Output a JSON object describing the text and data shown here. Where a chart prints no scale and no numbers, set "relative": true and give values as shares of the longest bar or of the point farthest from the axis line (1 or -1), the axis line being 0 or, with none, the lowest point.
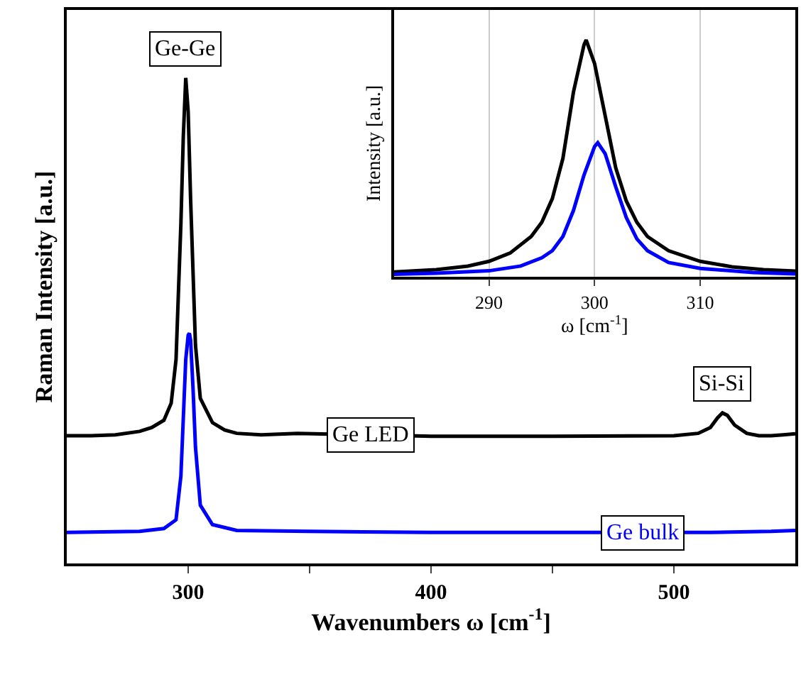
{
  "chart_data": [
    {
      "type": "line",
      "relative": true,
      "xlim": [
        250,
        550
      ],
      "xticks": [
        300,
        {
          "value": 350,
          "label": null
        },
        400,
        {
          "value": 450,
          "label": null
        },
        500
      ],
      "xlabel": "Wavenumbers ω [cm$^{-1}$]",
      "ylabel": "Raman Intensity [a.u.]",
      "grid": false,
      "line_style": "solid",
      "series": [
        {
          "name": "Ge LED",
          "color": "#000000",
          "x": [
            250,
            260,
            270,
            280,
            285,
            290,
            293,
            295,
            297,
            298,
            299,
            300,
            301,
            303,
            305,
            310,
            315,
            320,
            330,
            345,
            400,
            450,
            500,
            510,
            515,
            518,
            520,
            522,
            525,
            530,
            535,
            540,
            545,
            550
          ],
          "values": [
            0.263,
            0.263,
            0.265,
            0.272,
            0.28,
            0.295,
            0.33,
            0.42,
            0.7,
            0.88,
            1.0,
            0.93,
            0.75,
            0.45,
            0.34,
            0.29,
            0.275,
            0.268,
            0.265,
            0.268,
            0.262,
            0.262,
            0.263,
            0.268,
            0.28,
            0.3,
            0.31,
            0.305,
            0.285,
            0.268,
            0.263,
            0.263,
            0.265,
            0.267
          ]
        },
        {
          "name": "Ge bulk",
          "color": "#0000ff",
          "x": [
            250,
            280,
            290,
            295,
            297,
            298,
            299,
            300,
            300.5,
            301,
            302,
            303,
            305,
            310,
            320,
            350,
            400,
            450,
            515,
            540,
            550
          ],
          "values": [
            0.064,
            0.066,
            0.072,
            0.09,
            0.18,
            0.3,
            0.42,
            0.47,
            0.474,
            0.46,
            0.36,
            0.24,
            0.12,
            0.08,
            0.068,
            0.066,
            0.064,
            0.064,
            0.064,
            0.066,
            0.068
          ]
        }
      ],
      "annotations": [
        {
          "text": "Ge-Ge",
          "x": 299,
          "y": 1.0
        },
        {
          "text": "Si-Si",
          "x": 520,
          "y": 0.31
        }
      ]
    },
    {
      "type": "line",
      "relative": true,
      "xlim": [
        281,
        319
      ],
      "xticks": [
        290,
        300,
        310
      ],
      "xlabel": "ω [cm$^{-1}$]",
      "ylabel": "Intensity [a.u.]",
      "grid": "x",
      "line_style": "solid",
      "series": [
        {
          "color": "#000000",
          "x": [
            281,
            285,
            288,
            290,
            292,
            294,
            295,
            296,
            297,
            298,
            299,
            299.2,
            300,
            301,
            302,
            303,
            304,
            305,
            307,
            310,
            313,
            316,
            319
          ],
          "values": [
            0.02,
            0.03,
            0.045,
            0.065,
            0.1,
            0.17,
            0.23,
            0.33,
            0.5,
            0.78,
            0.98,
            1.0,
            0.9,
            0.68,
            0.46,
            0.32,
            0.23,
            0.17,
            0.11,
            0.065,
            0.042,
            0.03,
            0.024
          ]
        },
        {
          "color": "#0000ff",
          "x": [
            281,
            285,
            290,
            293,
            295,
            296,
            297,
            298,
            299,
            300,
            300.3,
            301,
            302,
            303,
            304,
            305,
            307,
            310,
            315,
            319
          ],
          "values": [
            0.01,
            0.015,
            0.025,
            0.045,
            0.08,
            0.11,
            0.17,
            0.28,
            0.43,
            0.55,
            0.566,
            0.52,
            0.38,
            0.25,
            0.16,
            0.11,
            0.06,
            0.035,
            0.018,
            0.012
          ]
        }
      ]
    }
  ]
}
